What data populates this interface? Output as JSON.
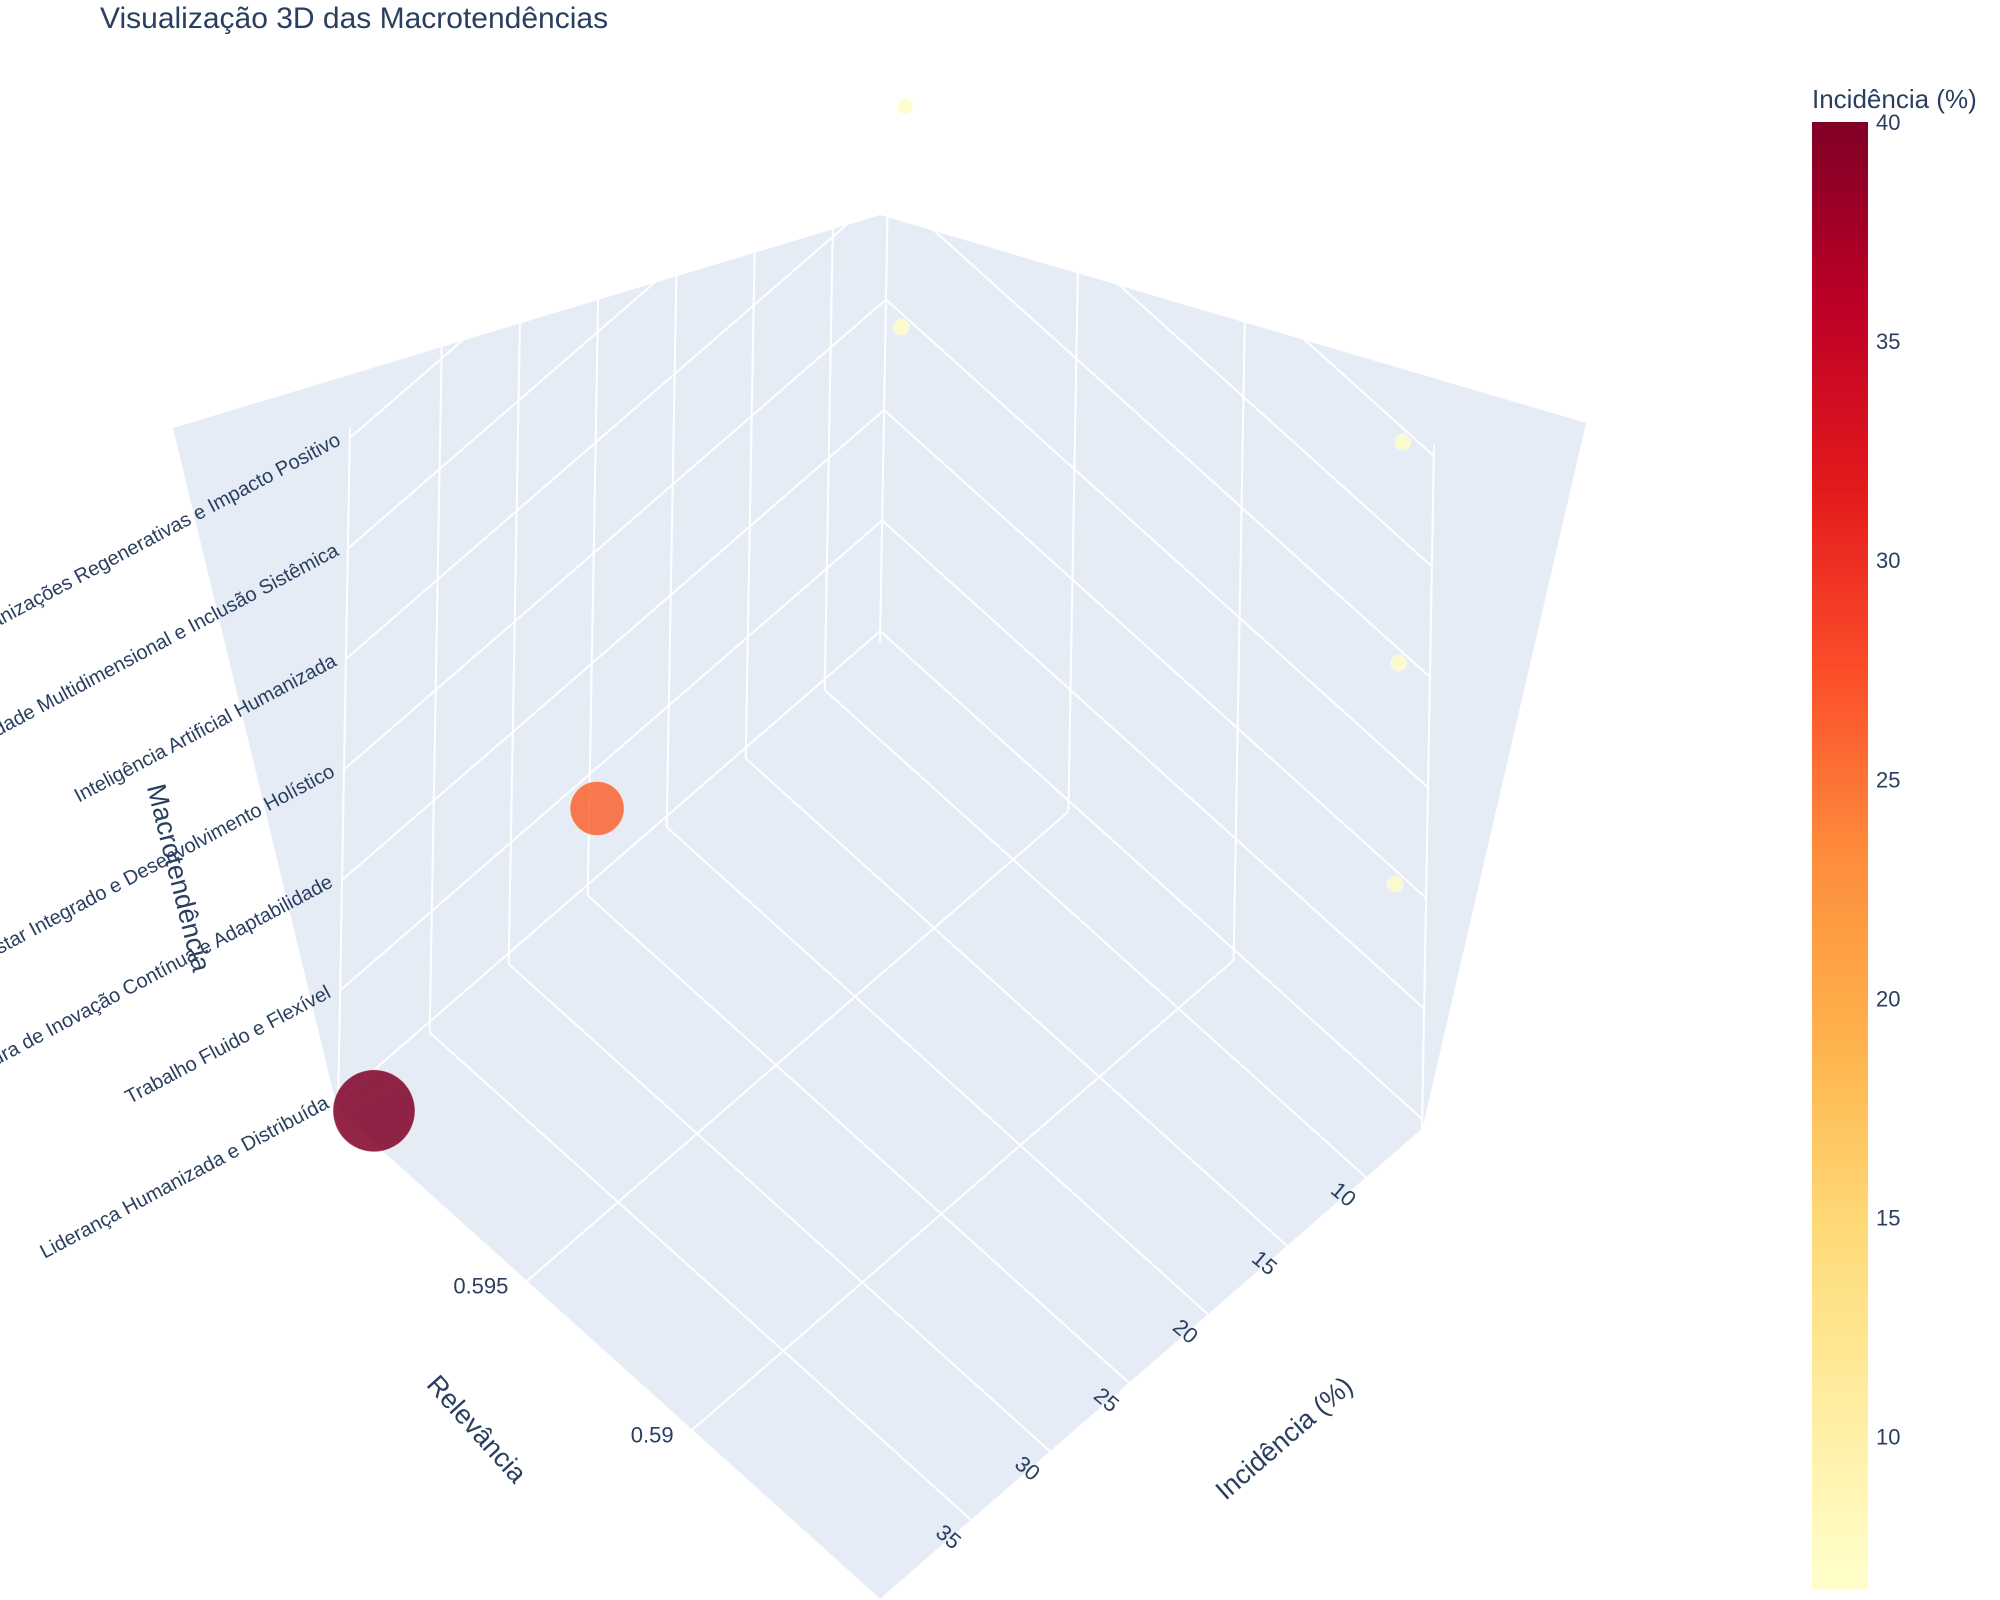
{
  "chart_data": {
    "type": "scatter",
    "title": "Visualização 3D das Macrotendências",
    "axes": {
      "x": {
        "label": "Relevância",
        "ticks": [
          "0.59",
          "0.595"
        ]
      },
      "y": {
        "label": "Incidência (%)",
        "ticks": [
          "10",
          "15",
          "20",
          "25",
          "30",
          "35"
        ]
      },
      "z": {
        "label": "Macrotendência",
        "categories": [
          "Liderança Humanizada e Distribuída",
          "Trabalho Fluido e Flexível",
          "Cultura de Inovação Contínua e Adaptabilidade",
          "Bem-estar Integrado e Desenvolvimento Holístico",
          "Inteligência Artificial Humanizada",
          "Diversidade Multidimensional e Inclusão Sistêmica",
          "Organizações Regenerativas e Impacto Positivo"
        ]
      }
    },
    "colorbar": {
      "title": "Incidência (%)",
      "ticks": [
        "10",
        "15",
        "20",
        "25",
        "30",
        "35",
        "40"
      ],
      "range": [
        6.5,
        40
      ],
      "colorscale": "YlOrRd"
    },
    "points": [
      {
        "macrotendencia": "Liderança Humanizada e Distribuída",
        "relevancia": 0.6,
        "incidencia": 40
      },
      {
        "macrotendencia": "Trabalho Fluido e Flexível",
        "relevancia": 0.6,
        "incidencia": 26
      },
      {
        "macrotendencia": "Cultura de Inovação Contínua e Adaptabilidade",
        "relevancia": 0.585,
        "incidencia": 7
      },
      {
        "macrotendencia": "Bem-estar Integrado e Desenvolvimento Holístico",
        "relevancia": 0.6,
        "incidencia": 7
      },
      {
        "macrotendencia": "Inteligência Artificial Humanizada",
        "relevancia": 0.585,
        "incidencia": 7
      },
      {
        "macrotendencia": "Diversidade Multidimensional e Inclusão Sistêmica",
        "relevancia": 0.6,
        "incidencia": 7
      },
      {
        "macrotendencia": "Organizações Regenerativas e Impacto Positivo",
        "relevancia": 0.585,
        "incidencia": 7
      }
    ]
  }
}
